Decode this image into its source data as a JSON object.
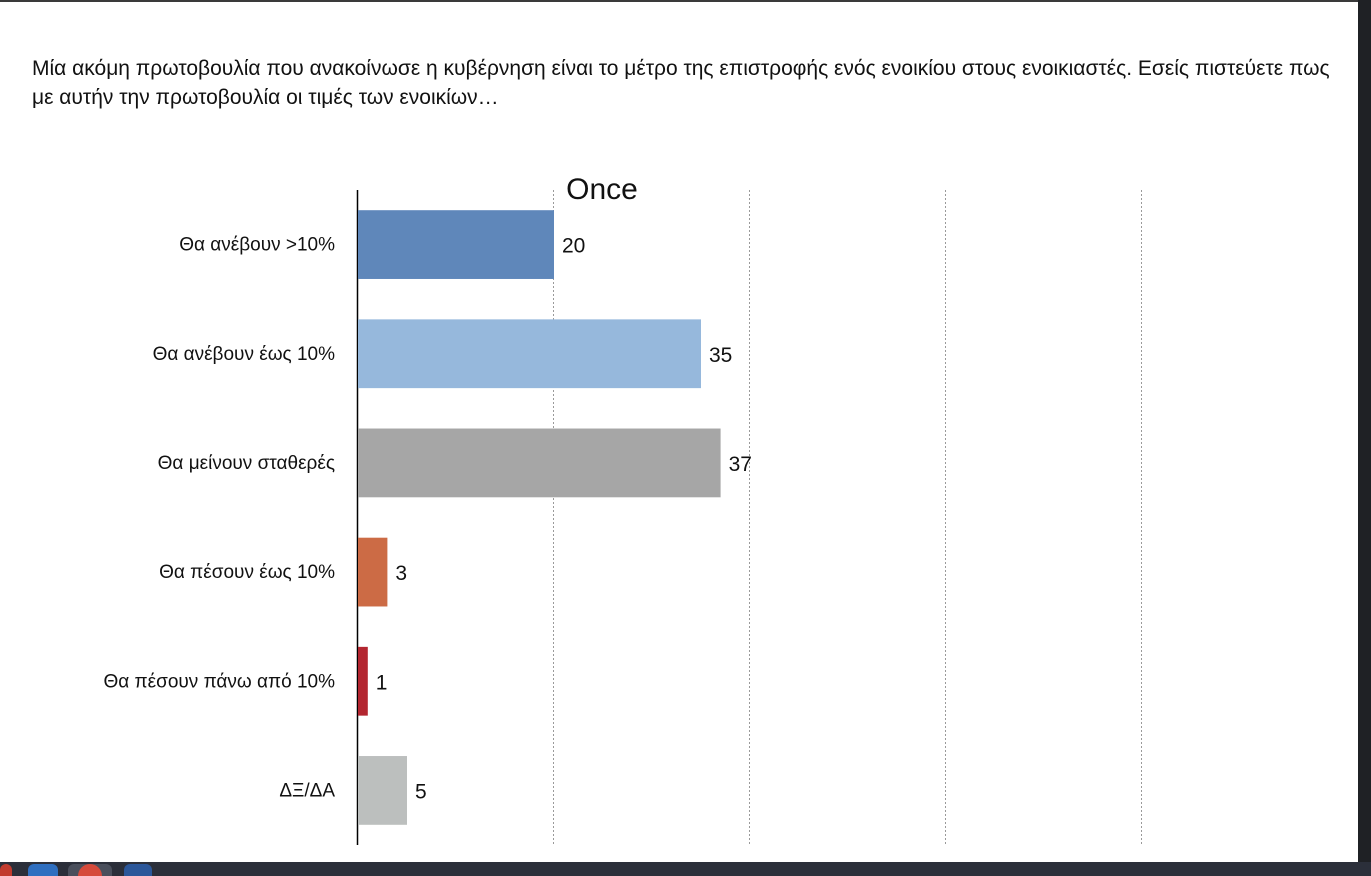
{
  "question": "Μία ακόμη πρωτοβουλία που ανακοίνωσε η κυβέρνηση είναι το μέτρο της επιστροφής ενός ενοικίου στους ενοικιαστές. Εσείς πιστεύετε πως με αυτήν την πρωτοβουλία οι τιμές των ενοικίων…",
  "chart_data": {
    "type": "bar",
    "orientation": "horizontal",
    "title": "Once",
    "categories": [
      "Θα ανέβουν >10%",
      "Θα ανέβουν έως 10%",
      "Θα μείνουν σταθερές",
      "Θα πέσουν έως 10%",
      "Θα πέσουν πάνω από 10%",
      "ΔΞ/ΔΑ"
    ],
    "values": [
      20,
      35,
      37,
      3,
      1,
      5
    ],
    "data_labels": [
      "20",
      "35",
      "37",
      "3",
      "1",
      "5"
    ],
    "colors": [
      "#5f87ba",
      "#96b8dc",
      "#a6a6a6",
      "#cc6b45",
      "#b32630",
      "#bcbfbe"
    ],
    "xlim": [
      0,
      100
    ],
    "gridlines": "vertical dotted",
    "xlabel": "",
    "ylabel": "",
    "legend": "none"
  },
  "taskbar": {
    "icons": [
      "red-app-icon",
      "blue-app-icon",
      "chrome-icon",
      "word-icon"
    ]
  }
}
